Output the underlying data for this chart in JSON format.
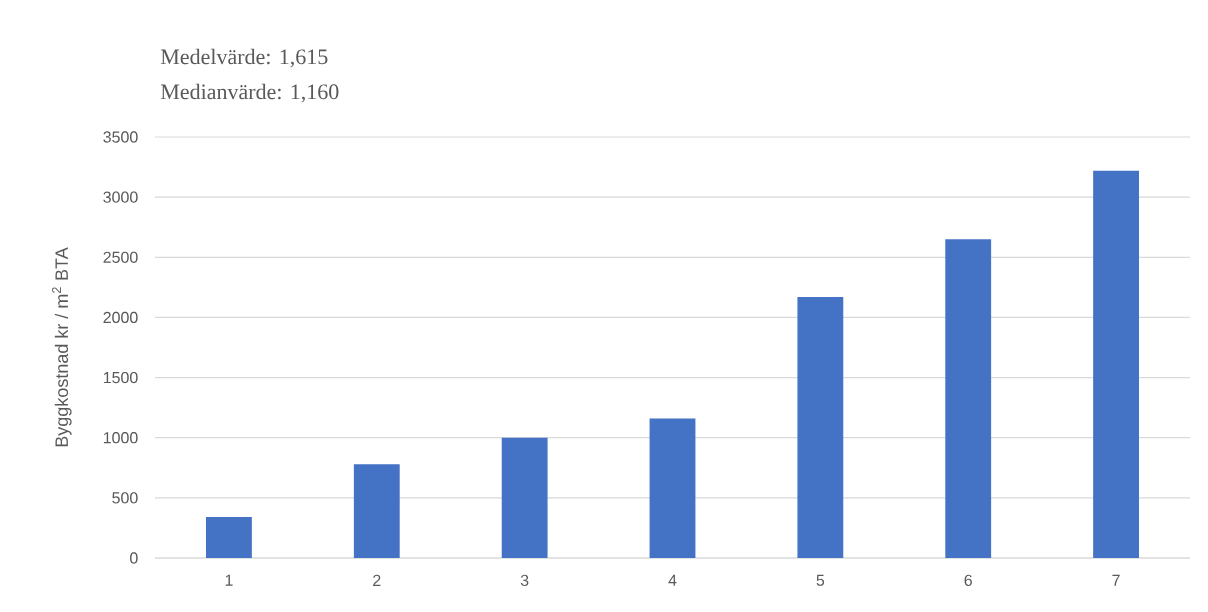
{
  "chart_data": {
    "type": "bar",
    "ylabel": "Byggkostnad kr / m$^{2}$ BTA",
    "categories": [
      "1",
      "2",
      "3",
      "4",
      "5",
      "6",
      "7"
    ],
    "values": [
      340,
      780,
      1000,
      1160,
      2170,
      2650,
      3220
    ],
    "color": "#4472c4",
    "ylim": [
      0,
      3500
    ],
    "yticks": [
      0,
      500,
      1000,
      1500,
      2000,
      2500,
      3000,
      3500
    ],
    "grid": "y",
    "annotations": [
      "Medelvärde: 1,615",
      "Medianvärde: 1,160"
    ]
  }
}
